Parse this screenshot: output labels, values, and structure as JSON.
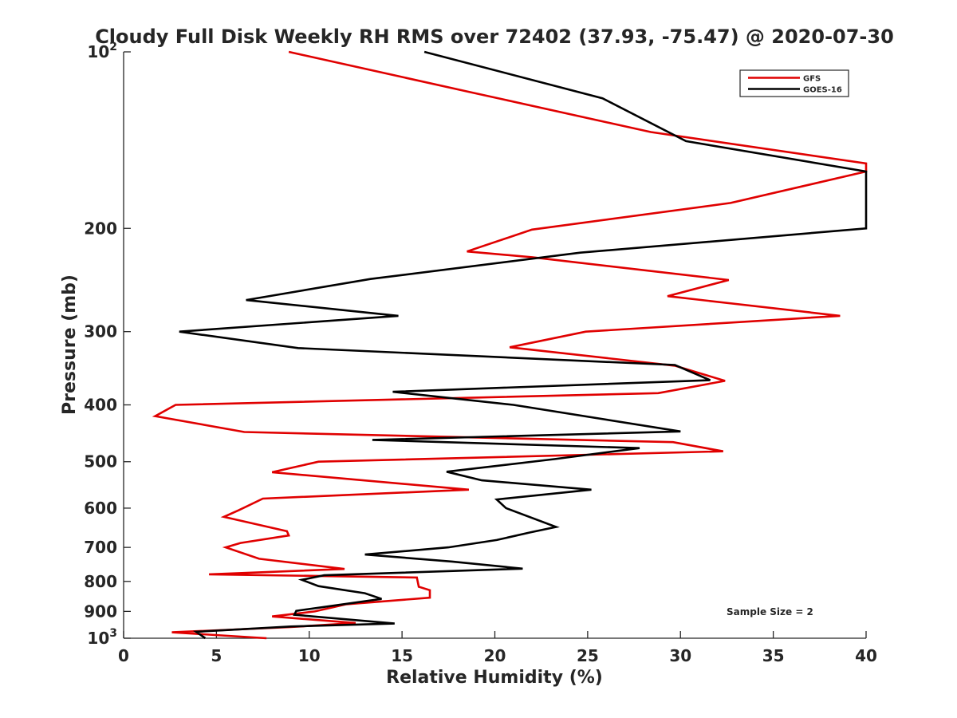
{
  "chart_data": {
    "type": "line",
    "title": "Cloudy Full Disk Weekly RH RMS over 72402 (37.93, -75.47) @ 2020-07-30",
    "xlabel": "Relative Humidity (%)",
    "ylabel": "Pressure (mb)",
    "xlim": [
      0,
      40
    ],
    "ylim": [
      100,
      1000
    ],
    "y_scale": "log",
    "y_reversed": true,
    "grid": false,
    "x_ticks": [
      0,
      5,
      10,
      15,
      20,
      25,
      30,
      35,
      40
    ],
    "x_tick_labels": [
      "0",
      "5",
      "10",
      "15",
      "20",
      "25",
      "30",
      "35",
      "40"
    ],
    "y_ticks": [
      100,
      200,
      300,
      400,
      500,
      600,
      700,
      800,
      900,
      1000
    ],
    "y_tick_labels": [
      "10^2",
      "200",
      "300",
      "400",
      "500",
      "600",
      "700",
      "800",
      "900",
      "10^3"
    ],
    "legend_position": "top-right",
    "annotation": "Sample Size = 2",
    "series": [
      {
        "name": "GFS",
        "color": "#e00000",
        "points": [
          [
            8.9,
            100
          ],
          [
            18.6,
            117
          ],
          [
            28.4,
            137
          ],
          [
            40.0,
            155
          ],
          [
            40.0,
            160
          ],
          [
            32.7,
            181
          ],
          [
            22.0,
            201
          ],
          [
            18.5,
            219
          ],
          [
            22.0,
            224
          ],
          [
            32.6,
            245
          ],
          [
            29.3,
            261
          ],
          [
            38.6,
            282
          ],
          [
            24.9,
            300
          ],
          [
            20.8,
            319
          ],
          [
            29.7,
            343
          ],
          [
            32.4,
            364
          ],
          [
            28.8,
            382
          ],
          [
            2.8,
            400
          ],
          [
            1.7,
            418
          ],
          [
            6.5,
            445
          ],
          [
            29.6,
            463
          ],
          [
            32.3,
            480
          ],
          [
            10.5,
            500
          ],
          [
            8.0,
            521
          ],
          [
            18.6,
            558
          ],
          [
            7.5,
            578
          ],
          [
            6.2,
            605
          ],
          [
            5.4,
            621
          ],
          [
            8.8,
            657
          ],
          [
            8.9,
            668
          ],
          [
            6.3,
            688
          ],
          [
            5.5,
            700
          ],
          [
            7.3,
            732
          ],
          [
            11.9,
            762
          ],
          [
            4.6,
            778
          ],
          [
            15.8,
            788
          ],
          [
            15.9,
            817
          ],
          [
            16.5,
            828
          ],
          [
            16.5,
            853
          ],
          [
            12.0,
            875
          ],
          [
            10.3,
            900
          ],
          [
            8.0,
            918
          ],
          [
            12.5,
            942
          ],
          [
            9.0,
            957
          ],
          [
            2.6,
            977
          ],
          [
            7.7,
            1000
          ]
        ]
      },
      {
        "name": "GOES-16",
        "color": "#000000",
        "points": [
          [
            16.2,
            100
          ],
          [
            25.8,
            120
          ],
          [
            30.3,
            142
          ],
          [
            40.0,
            160
          ],
          [
            40.0,
            200
          ],
          [
            24.6,
            220
          ],
          [
            13.3,
            244
          ],
          [
            6.6,
            265
          ],
          [
            14.8,
            282
          ],
          [
            3.0,
            300
          ],
          [
            9.4,
            320
          ],
          [
            29.7,
            342
          ],
          [
            31.6,
            363
          ],
          [
            14.5,
            380
          ],
          [
            21.0,
            400
          ],
          [
            30.0,
            444
          ],
          [
            13.4,
            459
          ],
          [
            27.8,
            474
          ],
          [
            23.2,
            495
          ],
          [
            17.4,
            520
          ],
          [
            19.3,
            538
          ],
          [
            25.2,
            558
          ],
          [
            20.1,
            580
          ],
          [
            20.6,
            600
          ],
          [
            23.3,
            646
          ],
          [
            21.9,
            660
          ],
          [
            20.1,
            680
          ],
          [
            17.5,
            700
          ],
          [
            13.0,
            720
          ],
          [
            17.7,
            740
          ],
          [
            21.5,
            761
          ],
          [
            10.8,
            781
          ],
          [
            9.6,
            795
          ],
          [
            10.5,
            815
          ],
          [
            13.0,
            838
          ],
          [
            13.9,
            857
          ],
          [
            9.3,
            898
          ],
          [
            9.2,
            912
          ],
          [
            14.6,
            944
          ],
          [
            9.0,
            955
          ],
          [
            3.9,
            975
          ],
          [
            4.4,
            1000
          ]
        ]
      }
    ]
  }
}
